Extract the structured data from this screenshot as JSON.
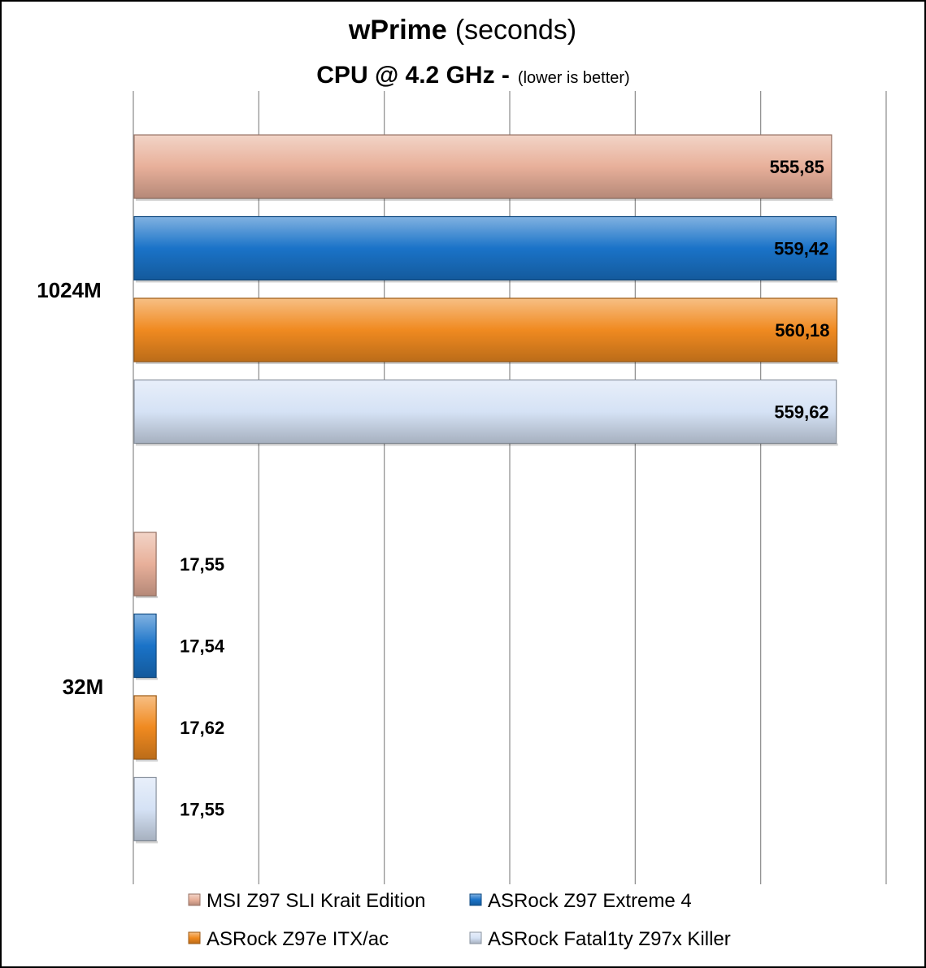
{
  "chart_data": {
    "type": "bar",
    "orientation": "horizontal",
    "title_main": "wPrime",
    "title_unit": "(seconds)",
    "subtitle_main": "CPU @ 4.2 GHz -",
    "subtitle_note": "(lower is better)",
    "categories": [
      "1024M",
      "32M"
    ],
    "series": [
      {
        "name": "MSI Z97 SLI Krait Edition",
        "color": "#e8b09a",
        "values": [
          555.85,
          17.55
        ],
        "labels": [
          "555,85",
          "17,55"
        ]
      },
      {
        "name": "ASRock Z97 Extreme 4",
        "color": "#1a73c8",
        "values": [
          559.42,
          17.54
        ],
        "labels": [
          "559,42",
          "17,54"
        ]
      },
      {
        "name": "ASRock Z97e ITX/ac",
        "color": "#f08a20",
        "values": [
          560.18,
          17.62
        ],
        "labels": [
          "560,18",
          "17,62"
        ]
      },
      {
        "name": "ASRock Fatal1ty Z97x Killer",
        "color": "#d5e2f5",
        "values": [
          559.62,
          17.55
        ],
        "labels": [
          "559,62",
          "17,55"
        ]
      }
    ],
    "xlim": [
      0,
      600
    ],
    "grid": true,
    "axis_tick_labels_shown": false,
    "legend_position": "bottom"
  }
}
